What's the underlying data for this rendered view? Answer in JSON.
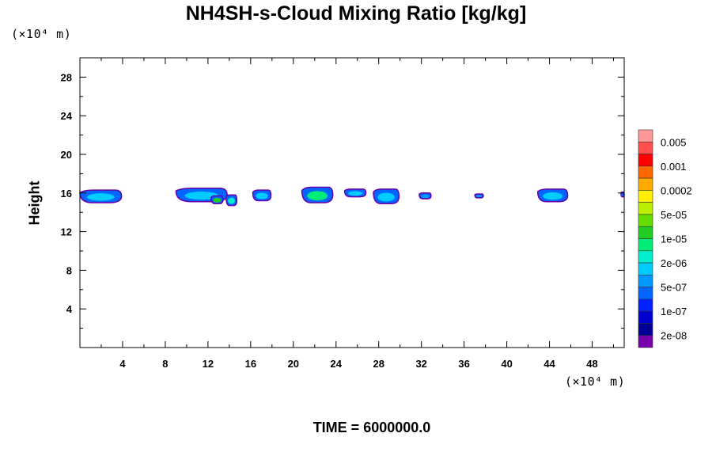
{
  "chart_data": {
    "type": "heatmap",
    "title": "NH4SH-s-Cloud Mixing Ratio [kg/kg]",
    "ylabel": "Height",
    "y_unit": "(×10⁴ m)",
    "x_unit": "(×10⁴ m)",
    "xlim": [
      0,
      51
    ],
    "ylim": [
      0,
      30
    ],
    "x_ticks": [
      4,
      8,
      12,
      16,
      20,
      24,
      28,
      32,
      36,
      40,
      44,
      48
    ],
    "y_ticks": [
      4,
      8,
      12,
      16,
      20,
      24,
      28
    ],
    "footer": "TIME = 6000000.0",
    "colorbar": {
      "labels": [
        "0.005",
        "0.001",
        "0.0002",
        "5e-05",
        "1e-05",
        "2e-06",
        "5e-07",
        "1e-07",
        "2e-08"
      ],
      "colors": [
        "#ff9999",
        "#ff5050",
        "#ff0000",
        "#ff6600",
        "#ffaa00",
        "#ffee00",
        "#bbee00",
        "#66dd00",
        "#22cc22",
        "#00ee77",
        "#00eecc",
        "#00ccff",
        "#0099ff",
        "#0066ff",
        "#0022ff",
        "#0000cc",
        "#000099",
        "#7700aa"
      ]
    },
    "cloud_patches": [
      {
        "x0": 0.0,
        "x1": 3.9,
        "ytop": 16.3,
        "ybot": 15.0,
        "core": "#00ccff"
      },
      {
        "x0": 9.0,
        "x1": 13.8,
        "ytop": 16.5,
        "ybot": 15.1,
        "core": "#00ccff"
      },
      {
        "x0": 12.3,
        "x1": 13.4,
        "ytop": 15.7,
        "ybot": 14.9,
        "core": "#22cc22"
      },
      {
        "x0": 13.7,
        "x1": 14.7,
        "ytop": 15.8,
        "ybot": 14.7,
        "core": "#00eecc"
      },
      {
        "x0": 16.2,
        "x1": 17.9,
        "ytop": 16.3,
        "ybot": 15.2,
        "core": "#00ccff"
      },
      {
        "x0": 20.8,
        "x1": 23.7,
        "ytop": 16.6,
        "ybot": 15.0,
        "core": "#00ee77"
      },
      {
        "x0": 24.8,
        "x1": 26.8,
        "ytop": 16.4,
        "ybot": 15.6,
        "core": "#00ccff"
      },
      {
        "x0": 27.5,
        "x1": 29.9,
        "ytop": 16.4,
        "ybot": 14.9,
        "core": "#00ccff"
      },
      {
        "x0": 31.8,
        "x1": 32.9,
        "ytop": 16.0,
        "ybot": 15.4,
        "core": "#0099ff"
      },
      {
        "x0": 37.0,
        "x1": 37.8,
        "ytop": 15.9,
        "ybot": 15.5,
        "core": "#0099ff"
      },
      {
        "x0": 42.9,
        "x1": 45.7,
        "ytop": 16.4,
        "ybot": 15.1,
        "core": "#00ccff"
      },
      {
        "x0": 50.7,
        "x1": 51.0,
        "ytop": 16.1,
        "ybot": 15.6,
        "core": "#0066ff"
      }
    ]
  }
}
